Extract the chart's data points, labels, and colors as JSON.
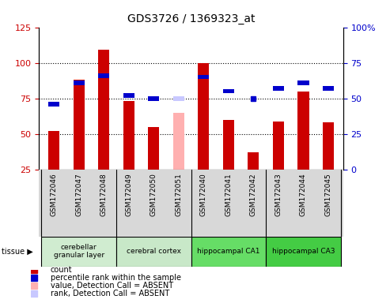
{
  "title": "GDS3726 / 1369323_at",
  "samples": [
    "GSM172046",
    "GSM172047",
    "GSM172048",
    "GSM172049",
    "GSM172050",
    "GSM172051",
    "GSM172040",
    "GSM172041",
    "GSM172042",
    "GSM172043",
    "GSM172044",
    "GSM172045"
  ],
  "count_values": [
    52,
    88,
    109,
    73,
    55,
    null,
    100,
    60,
    37,
    59,
    80,
    58
  ],
  "rank_values": [
    46,
    61,
    66,
    52,
    50,
    null,
    65,
    55,
    null,
    57,
    61,
    57
  ],
  "absent_count": [
    null,
    null,
    null,
    null,
    null,
    65,
    null,
    null,
    null,
    null,
    null,
    null
  ],
  "absent_rank": [
    null,
    null,
    null,
    null,
    null,
    50,
    null,
    null,
    null,
    null,
    null,
    null
  ],
  "absent_dot_rank": [
    null,
    null,
    null,
    null,
    null,
    null,
    null,
    null,
    50,
    null,
    null,
    null
  ],
  "tissue_groups": [
    {
      "label": "cerebellar\ngranular layer",
      "start": 0,
      "end": 3,
      "color": "#c8e8c8"
    },
    {
      "label": "cerebral cortex",
      "start": 3,
      "end": 6,
      "color": "#c8e8c8"
    },
    {
      "label": "hippocampal CA1",
      "start": 6,
      "end": 9,
      "color": "#66dd66"
    },
    {
      "label": "hippocampal CA3",
      "start": 9,
      "end": 12,
      "color": "#55cc55"
    }
  ],
  "ylim_left": [
    25,
    125
  ],
  "ylim_right": [
    0,
    100
  ],
  "yticks_left": [
    25,
    50,
    75,
    100,
    125
  ],
  "yticks_right": [
    0,
    25,
    50,
    75,
    100
  ],
  "color_count": "#cc0000",
  "color_rank": "#0000cc",
  "color_absent_count": "#ffb0b0",
  "color_absent_rank": "#c8c8ff",
  "bar_width": 0.45,
  "bg_color": "#d8d8d8",
  "rank_bar_height": 4
}
